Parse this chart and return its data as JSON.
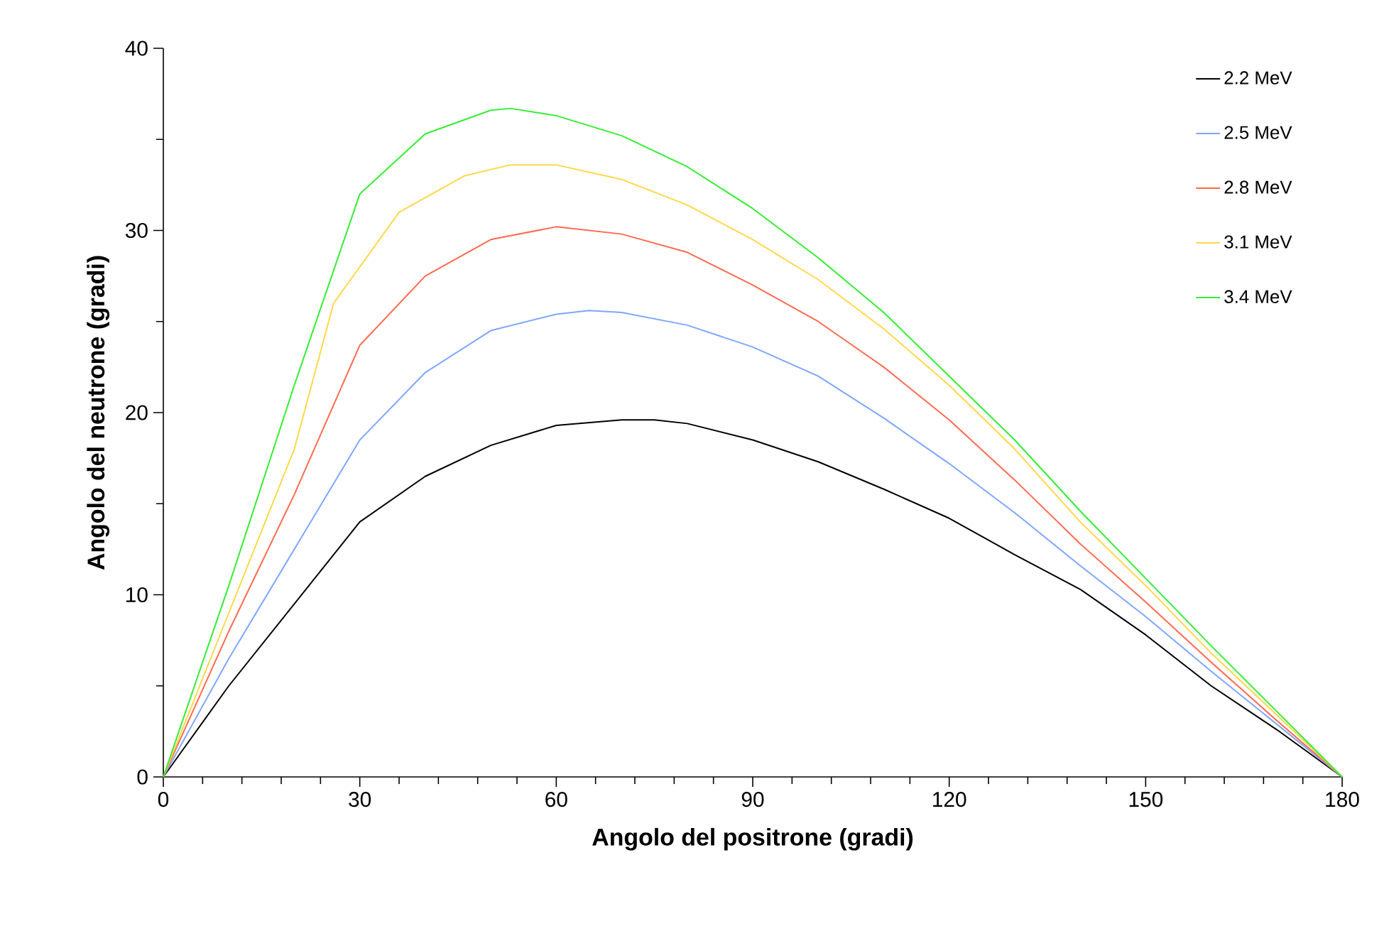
{
  "chart_data": {
    "type": "line",
    "xlabel": "Angolo del positrone (gradi)",
    "ylabel": "Angolo del neutrone (gradi)",
    "xlim": [
      0,
      180
    ],
    "xticks": [
      0,
      30,
      60,
      90,
      120,
      150,
      180
    ],
    "ylim": [
      0,
      40
    ],
    "yticks": [
      0,
      10,
      20,
      30,
      40
    ],
    "legend": "top right",
    "marker": "none",
    "line_style": "solid",
    "series": [
      {
        "name": "2.2 MeV",
        "color": "#000000",
        "x": [
          0,
          10,
          20,
          30,
          40,
          50,
          60,
          70,
          75,
          80,
          90,
          100,
          110,
          120,
          130,
          140,
          150,
          160,
          170,
          180
        ],
        "values": [
          0,
          5,
          9.5,
          14,
          16.5,
          18.2,
          19.3,
          19.6,
          19.6,
          19.4,
          18.5,
          17.3,
          15.8,
          14.2,
          12.2,
          10.3,
          7.8,
          5,
          2.6,
          0
        ]
      },
      {
        "name": "2.5 MeV",
        "color": "#7fa7ff",
        "x": [
          0,
          10,
          20,
          30,
          40,
          50,
          60,
          65,
          70,
          80,
          90,
          100,
          110,
          120,
          130,
          140,
          150,
          160,
          170,
          180
        ],
        "values": [
          0,
          6.5,
          12.5,
          18.5,
          22.2,
          24.5,
          25.4,
          25.6,
          25.5,
          24.8,
          23.6,
          22,
          19.7,
          17.2,
          14.5,
          11.6,
          8.8,
          5.8,
          2.9,
          0
        ]
      },
      {
        "name": "2.8 MeV",
        "color": "#ff6a4f",
        "x": [
          0,
          10,
          20,
          30,
          40,
          50,
          60,
          70,
          80,
          90,
          100,
          110,
          120,
          130,
          140,
          150,
          160,
          170,
          180
        ],
        "values": [
          0,
          8,
          15.5,
          23.7,
          27.5,
          29.5,
          30.2,
          29.8,
          28.8,
          27,
          25,
          22.5,
          19.6,
          16.3,
          12.8,
          9.6,
          6.3,
          3.1,
          0
        ]
      },
      {
        "name": "3.1 MeV",
        "color": "#ffd84a",
        "x": [
          0,
          10,
          20,
          26,
          36,
          46,
          53,
          60,
          70,
          80,
          90,
          100,
          110,
          120,
          130,
          140,
          150,
          160,
          170,
          180
        ],
        "values": [
          0,
          9,
          18,
          26,
          31,
          33,
          33.6,
          33.6,
          32.8,
          31.4,
          29.5,
          27.3,
          24.6,
          21.5,
          18,
          14,
          10.5,
          6.8,
          3.4,
          0
        ]
      },
      {
        "name": "3.4 MeV",
        "color": "#33ee33",
        "x": [
          0,
          10,
          20,
          30,
          40,
          50,
          53,
          60,
          70,
          80,
          90,
          100,
          110,
          120,
          130,
          140,
          150,
          160,
          170,
          180
        ],
        "values": [
          0,
          10.5,
          21.5,
          32,
          35.3,
          36.6,
          36.7,
          36.3,
          35.2,
          33.5,
          31.2,
          28.5,
          25.5,
          22,
          18.5,
          14.6,
          10.9,
          7.2,
          3.6,
          0
        ]
      }
    ]
  }
}
